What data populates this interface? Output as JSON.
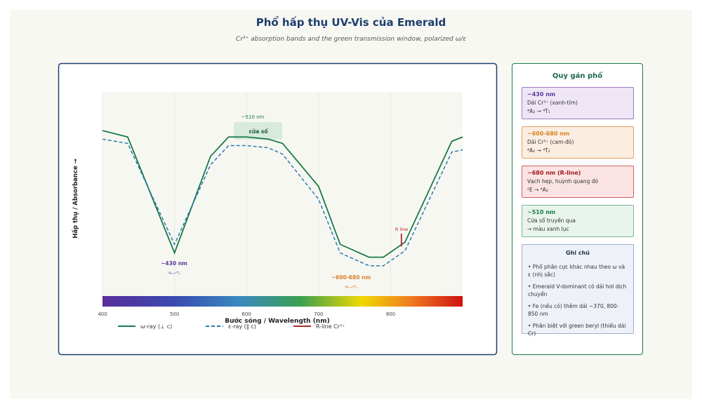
{
  "title": "Phổ hấp thụ UV-Vis của Emerald",
  "subtitle": "Cr³⁺ absorption bands and the green transmission window, polarized ω/ε",
  "chart_data": {
    "type": "line",
    "xlabel": "Bước sóng / Wavelength (nm)",
    "ylabel": "Hấp thụ / Absorbance →",
    "xlim": [
      400,
      900
    ],
    "ylim": [
      0,
      1
    ],
    "xticks": [
      400,
      500,
      600,
      700,
      800
    ],
    "grid": true,
    "series": [
      {
        "name": "ω-ray (⊥ c)",
        "color": "#1a7a4a",
        "dash": false,
        "x": [
          400,
          435,
          500,
          550,
          575,
          600,
          630,
          650,
          700,
          730,
          770,
          790,
          820,
          885,
          900
        ],
        "values": [
          0.82,
          0.79,
          0.25,
          0.7,
          0.79,
          0.79,
          0.78,
          0.76,
          0.56,
          0.29,
          0.23,
          0.23,
          0.3,
          0.77,
          0.79
        ]
      },
      {
        "name": "ε-ray (∥ c)",
        "color": "#2a7ab0",
        "dash": true,
        "x": [
          400,
          435,
          500,
          550,
          575,
          600,
          630,
          650,
          700,
          730,
          770,
          790,
          820,
          885,
          900
        ],
        "values": [
          0.78,
          0.76,
          0.29,
          0.66,
          0.75,
          0.75,
          0.74,
          0.71,
          0.5,
          0.25,
          0.19,
          0.19,
          0.26,
          0.72,
          0.73
        ]
      },
      {
        "name": "R-line Cr³⁺",
        "color": "#b02a2a",
        "dash": false,
        "x": [
          815,
          815
        ],
        "values": [
          0.28,
          0.34
        ]
      }
    ],
    "annotations": [
      {
        "text": "~510 nm",
        "color": "#1a7a4a"
      },
      {
        "text": "cửa sổ",
        "color": "#1a5a3a"
      },
      {
        "text": "~430 nm",
        "color": "#5b3a9a"
      },
      {
        "text": "⁴A₂→⁴T₁",
        "color": "#7a5aaa"
      },
      {
        "text": "~600-680 nm",
        "color": "#d9822b"
      },
      {
        "text": "⁴A₂→⁴T₂",
        "color": "#d9822b"
      },
      {
        "text": "R line",
        "color": "#b02a2a"
      }
    ]
  },
  "sidebar": {
    "title": "Quy gán phổ",
    "cards": [
      {
        "heading": "~430 nm",
        "lines": [
          "Dải Cr³⁺ (xanh-tím)",
          "⁴A₂ → ⁴T₁"
        ]
      },
      {
        "heading": "~600-680 nm",
        "lines": [
          "Dải Cr³⁺ (cam-đỏ)",
          "⁴A₂ → ⁴T₂"
        ]
      },
      {
        "heading": "~680 nm (R-line)",
        "lines": [
          "Vạch hẹp, huỳnh quang đỏ",
          "²E → ⁴A₂"
        ]
      },
      {
        "heading": "~510 nm",
        "lines": [
          "Cửa sổ truyền qua",
          "→ màu xanh lục"
        ]
      }
    ],
    "notes": {
      "title": "Ghi chú",
      "items": [
        "• Phổ phân cực khác nhau theo ω và ε (nhị sắc)",
        "• Emerald V-dominant có dải hơi dịch chuyển",
        "• Fe (nếu có) thêm dải ~370, 800-850 nm",
        "• Phân biệt với green beryl (thiếu dải Cr)"
      ]
    }
  }
}
